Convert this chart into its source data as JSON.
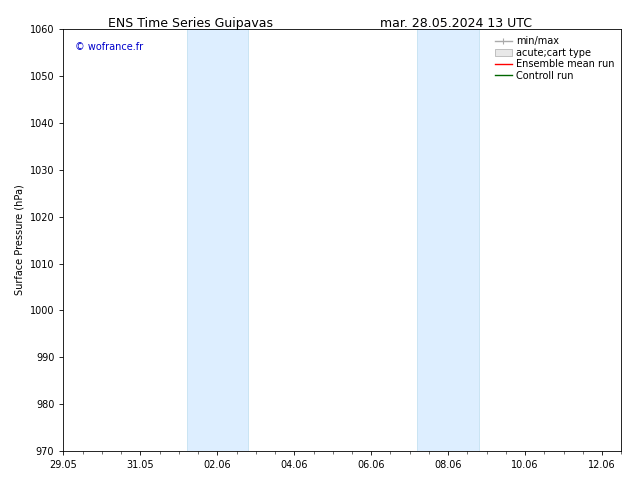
{
  "title_left": "ENS Time Series Guipavas",
  "title_right": "mar. 28.05.2024 13 UTC",
  "ylabel": "Surface Pressure (hPa)",
  "ylim": [
    970,
    1060
  ],
  "yticks": [
    970,
    980,
    990,
    1000,
    1010,
    1020,
    1030,
    1040,
    1050,
    1060
  ],
  "xtick_labels": [
    "29.05",
    "31.05",
    "02.06",
    "04.06",
    "06.06",
    "08.06",
    "10.06",
    "12.06"
  ],
  "xtick_positions": [
    0,
    2,
    4,
    6,
    8,
    10,
    12,
    14
  ],
  "x_start": 0,
  "x_end": 14,
  "shaded_bands": [
    {
      "x_start": 3.2,
      "x_end": 4.8
    },
    {
      "x_start": 9.2,
      "x_end": 10.8
    }
  ],
  "shaded_color": "#ddeeff",
  "shaded_edge_color": "#bbddee",
  "watermark_text": "© wofrance.fr",
  "watermark_color": "#0000cc",
  "legend_labels": [
    "min/max",
    "acute;cart type",
    "Ensemble mean run",
    "Controll run"
  ],
  "legend_colors": [
    "#aaaaaa",
    "#cccccc",
    "#ff0000",
    "#006600"
  ],
  "bg_color": "#ffffff",
  "plot_bg_color": "#ffffff",
  "font_size": 7,
  "title_font_size": 9
}
